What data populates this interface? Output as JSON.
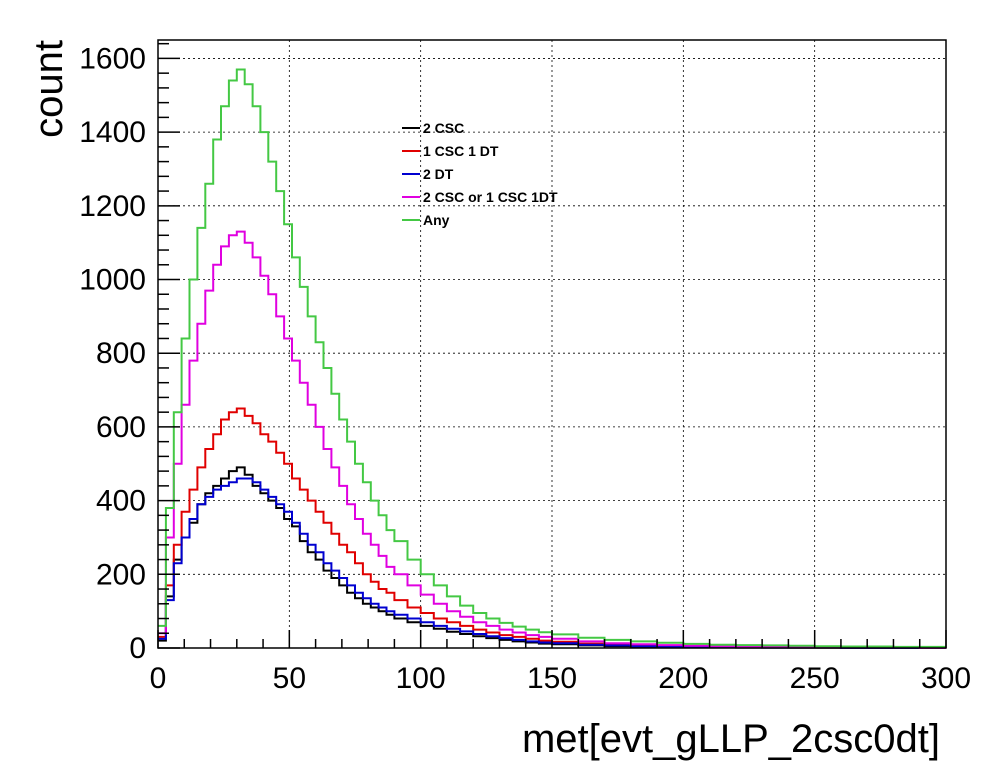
{
  "chart_data": {
    "type": "line",
    "xlabel": "met[evt_gLLP_2csc0dt]",
    "ylabel": "count",
    "xlim": [
      0,
      300
    ],
    "ylim": [
      0,
      1650
    ],
    "x_ticks": [
      "0",
      "50",
      "100",
      "150",
      "200",
      "250",
      "300"
    ],
    "y_ticks": [
      "0",
      "200",
      "400",
      "600",
      "800",
      "1000",
      "1200",
      "1400",
      "1600"
    ],
    "grid": true,
    "legend_position": "top-center",
    "x": [
      0,
      3,
      6,
      9,
      12,
      15,
      18,
      21,
      24,
      27,
      30,
      33,
      36,
      39,
      42,
      45,
      48,
      51,
      54,
      57,
      60,
      63,
      66,
      69,
      72,
      75,
      78,
      81,
      84,
      87,
      90,
      95,
      100,
      105,
      110,
      115,
      120,
      125,
      130,
      135,
      140,
      145,
      150,
      160,
      170,
      180,
      190,
      200,
      210,
      220,
      230,
      240,
      250,
      260,
      270,
      280,
      290,
      299
    ],
    "series": [
      {
        "name": "2 CSC",
        "color": "#000000",
        "values": [
          20,
          140,
          240,
          300,
          340,
          390,
          420,
          440,
          460,
          480,
          490,
          470,
          440,
          420,
          400,
          380,
          350,
          330,
          290,
          260,
          240,
          210,
          190,
          170,
          150,
          135,
          120,
          110,
          100,
          90,
          80,
          70,
          60,
          52,
          44,
          38,
          32,
          27,
          22,
          18,
          15,
          12,
          10,
          7,
          5,
          4,
          3,
          2,
          2,
          1,
          1,
          1,
          1,
          0,
          0,
          0,
          0,
          0
        ]
      },
      {
        "name": "1 CSC 1 DT",
        "color": "#e00000",
        "values": [
          30,
          170,
          280,
          370,
          430,
          490,
          540,
          580,
          620,
          640,
          650,
          630,
          610,
          580,
          560,
          530,
          500,
          460,
          430,
          400,
          370,
          340,
          310,
          280,
          260,
          230,
          200,
          180,
          160,
          150,
          130,
          110,
          95,
          80,
          70,
          60,
          50,
          42,
          35,
          30,
          25,
          20,
          17,
          12,
          9,
          7,
          5,
          4,
          3,
          2,
          2,
          1,
          1,
          1,
          0,
          0,
          0,
          0
        ]
      },
      {
        "name": "2 DT",
        "color": "#0000d0",
        "values": [
          25,
          130,
          230,
          300,
          350,
          390,
          410,
          430,
          440,
          450,
          460,
          460,
          450,
          430,
          410,
          390,
          370,
          340,
          310,
          280,
          260,
          230,
          210,
          190,
          170,
          150,
          135,
          120,
          110,
          100,
          90,
          80,
          70,
          60,
          52,
          45,
          38,
          32,
          27,
          22,
          18,
          15,
          13,
          9,
          7,
          5,
          4,
          3,
          2,
          2,
          1,
          1,
          1,
          0,
          0,
          0,
          0,
          0
        ]
      },
      {
        "name": "2 CSC or 1 CSC 1DT",
        "color": "#e000e0",
        "values": [
          40,
          300,
          500,
          660,
          780,
          880,
          970,
          1040,
          1090,
          1120,
          1130,
          1100,
          1060,
          1010,
          960,
          900,
          840,
          780,
          720,
          660,
          600,
          540,
          490,
          440,
          390,
          350,
          310,
          280,
          250,
          220,
          200,
          170,
          145,
          120,
          100,
          85,
          70,
          60,
          50,
          42,
          35,
          30,
          25,
          18,
          13,
          10,
          8,
          6,
          5,
          4,
          3,
          2,
          2,
          1,
          1,
          1,
          0,
          0
        ]
      },
      {
        "name": "Any",
        "color": "#44c844",
        "values": [
          60,
          380,
          640,
          840,
          1000,
          1140,
          1260,
          1380,
          1470,
          1540,
          1570,
          1530,
          1470,
          1400,
          1320,
          1240,
          1150,
          1060,
          980,
          900,
          830,
          760,
          690,
          620,
          560,
          500,
          450,
          400,
          360,
          320,
          290,
          240,
          200,
          170,
          140,
          115,
          95,
          80,
          68,
          58,
          50,
          43,
          37,
          28,
          22,
          18,
          14,
          11,
          9,
          8,
          7,
          6,
          5,
          4,
          4,
          3,
          3,
          3
        ]
      }
    ]
  }
}
